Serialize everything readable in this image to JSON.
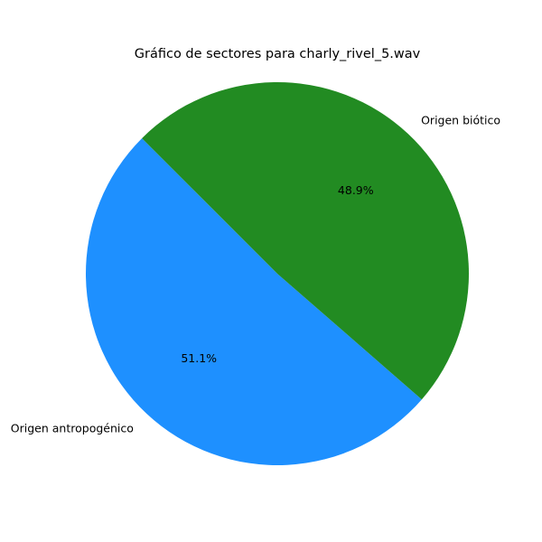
{
  "chart_data": {
    "type": "pie",
    "title": "Gráfico de sectores para charly_rivel_5.wav",
    "slices": [
      {
        "label": "Origen antropogénico",
        "value": 51.1,
        "pct_label": "51.1%",
        "color": "#1e90ff"
      },
      {
        "label": "Origen biótico",
        "value": 48.9,
        "pct_label": "48.9%",
        "color": "#228b22"
      }
    ],
    "start_angle_deg": 135,
    "direction": "counterclockwise"
  }
}
